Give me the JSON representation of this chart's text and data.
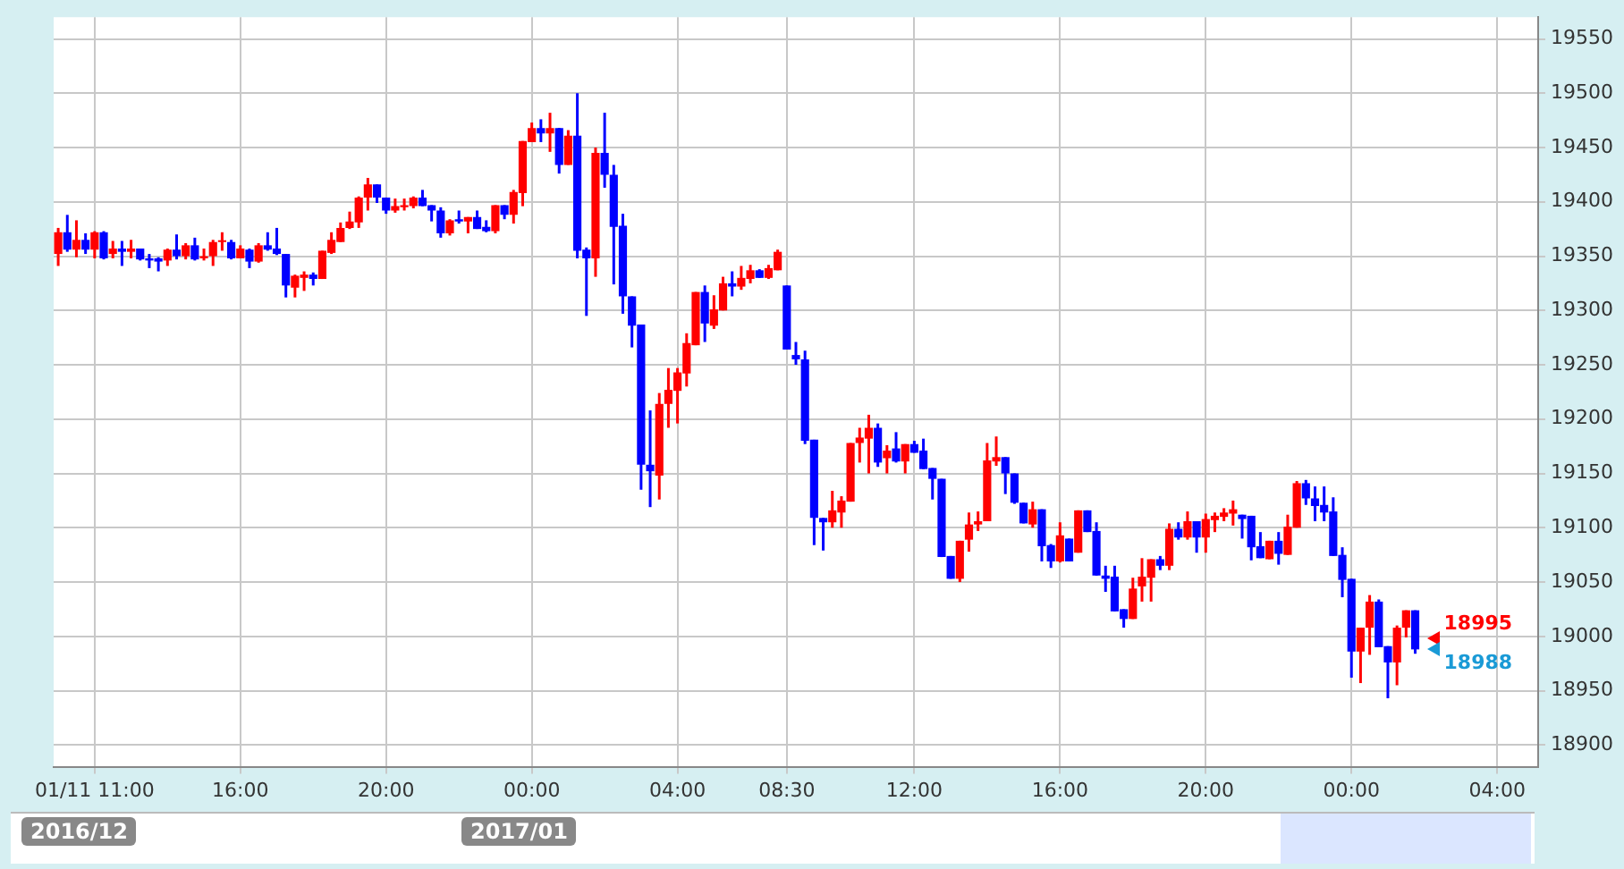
{
  "chart_data": {
    "type": "candlestick",
    "categories": [
      null,
      null,
      null,
      null,
      "01/11 11:00",
      null,
      null,
      null,
      null,
      null,
      null,
      null,
      null,
      null,
      null,
      null,
      null,
      null,
      null,
      null,
      "16:00",
      null,
      null,
      null,
      null,
      null,
      null,
      null,
      null,
      null,
      null,
      null,
      null,
      null,
      null,
      null,
      "20:00",
      null,
      null,
      null,
      null,
      null,
      null,
      null,
      null,
      null,
      null,
      null,
      null,
      null,
      null,
      null,
      "00:00",
      null,
      null,
      null,
      null,
      null,
      null,
      null,
      null,
      null,
      null,
      null,
      null,
      null,
      null,
      null,
      "04:00",
      null,
      null,
      null,
      null,
      null,
      null,
      null,
      null,
      null,
      null,
      null,
      "08:30",
      null,
      null,
      null,
      null,
      null,
      null,
      null,
      null,
      null,
      null,
      null,
      null,
      null,
      "12:00",
      null,
      null,
      null,
      null,
      null,
      null,
      null,
      null,
      null,
      null,
      null,
      null,
      null,
      null,
      null,
      "16:00",
      null,
      null,
      null,
      null,
      null,
      null,
      null,
      null,
      null,
      null,
      null,
      null,
      null,
      null,
      null,
      "20:00",
      null,
      null,
      null,
      null,
      null,
      null,
      null,
      null,
      null,
      null,
      null,
      null,
      null,
      null,
      null,
      "00:00",
      null,
      null,
      null,
      null,
      null,
      null,
      null,
      null,
      null,
      null,
      null,
      null,
      null,
      null,
      null,
      "04:00",
      null,
      null,
      null,
      null
    ],
    "ohlc": [
      [
        19352,
        19376,
        19341,
        19372
      ],
      [
        19372,
        19388,
        19354,
        19356
      ],
      [
        19356,
        19383,
        19349,
        19365
      ],
      [
        19365,
        19371,
        19352,
        19356
      ],
      [
        19356,
        19373,
        19348,
        19372
      ],
      [
        19372,
        19373,
        19347,
        19348
      ],
      [
        19352,
        19364,
        19348,
        19357
      ],
      [
        19357,
        19364,
        19341,
        19354
      ],
      [
        19354,
        19365,
        19348,
        19357
      ],
      [
        19357,
        19357,
        19346,
        19347
      ],
      [
        19348,
        19352,
        19339,
        19346
      ],
      [
        19348,
        19349,
        19336,
        19345
      ],
      [
        19346,
        19357,
        19341,
        19356
      ],
      [
        19356,
        19370,
        19347,
        19350
      ],
      [
        19350,
        19362,
        19347,
        19360
      ],
      [
        19360,
        19367,
        19346,
        19347
      ],
      [
        19348,
        19357,
        19346,
        19350
      ],
      [
        19350,
        19365,
        19341,
        19363
      ],
      [
        19363,
        19372,
        19355,
        19364
      ],
      [
        19363,
        19365,
        19347,
        19348
      ],
      [
        19348,
        19360,
        19348,
        19357
      ],
      [
        19356,
        19357,
        19339,
        19345
      ],
      [
        19345,
        19362,
        19344,
        19360
      ],
      [
        19360,
        19372,
        19355,
        19356
      ],
      [
        19357,
        19376,
        19351,
        19352
      ],
      [
        19352,
        19352,
        19312,
        19323
      ],
      [
        19321,
        19333,
        19312,
        19332
      ],
      [
        19330,
        19336,
        19318,
        19333
      ],
      [
        19333,
        19335,
        19323,
        19329
      ],
      [
        19329,
        19355,
        19329,
        19355
      ],
      [
        19353,
        19372,
        19352,
        19365
      ],
      [
        19363,
        19381,
        19363,
        19376
      ],
      [
        19376,
        19391,
        19375,
        19382
      ],
      [
        19381,
        19405,
        19376,
        19404
      ],
      [
        19404,
        19422,
        19392,
        19416
      ],
      [
        19416,
        19416,
        19399,
        19404
      ],
      [
        19404,
        19404,
        19389,
        19392
      ],
      [
        19392,
        19403,
        19390,
        19396
      ],
      [
        19395,
        19403,
        19392,
        19397
      ],
      [
        19396,
        19405,
        19394,
        19404
      ],
      [
        19404,
        19411,
        19396,
        19396
      ],
      [
        19397,
        19397,
        19382,
        19392
      ],
      [
        19392,
        19395,
        19367,
        19371
      ],
      [
        19371,
        19384,
        19369,
        19383
      ],
      [
        19384,
        19392,
        19380,
        19382
      ],
      [
        19382,
        19386,
        19371,
        19386
      ],
      [
        19386,
        19392,
        19375,
        19375
      ],
      [
        19377,
        19383,
        19372,
        19373
      ],
      [
        19373,
        19397,
        19371,
        19397
      ],
      [
        19397,
        19397,
        19384,
        19388
      ],
      [
        19388,
        19411,
        19380,
        19409
      ],
      [
        19408,
        19456,
        19396,
        19456
      ],
      [
        19455,
        19473,
        19455,
        19468
      ],
      [
        19468,
        19476,
        19455,
        19463
      ],
      [
        19463,
        19482,
        19446,
        19468
      ],
      [
        19468,
        19468,
        19426,
        19434
      ],
      [
        19434,
        19466,
        19434,
        19461
      ],
      [
        19461,
        19500,
        19348,
        19355
      ],
      [
        19356,
        19358,
        19295,
        19348
      ],
      [
        19348,
        19450,
        19331,
        19445
      ],
      [
        19445,
        19482,
        19413,
        19425
      ],
      [
        19425,
        19434,
        19324,
        19377
      ],
      [
        19378,
        19389,
        19297,
        19313
      ],
      [
        19313,
        19313,
        19266,
        19286
      ],
      [
        19287,
        19287,
        19135,
        19158
      ],
      [
        19158,
        19208,
        19119,
        19152
      ],
      [
        19148,
        19224,
        19126,
        19214
      ],
      [
        19214,
        19247,
        19192,
        19227
      ],
      [
        19226,
        19247,
        19196,
        19243
      ],
      [
        19242,
        19279,
        19230,
        19270
      ],
      [
        19268,
        19317,
        19268,
        19317
      ],
      [
        19317,
        19323,
        19271,
        19288
      ],
      [
        19286,
        19314,
        19283,
        19301
      ],
      [
        19300,
        19331,
        19300,
        19325
      ],
      [
        19325,
        19336,
        19313,
        19322
      ],
      [
        19322,
        19341,
        19319,
        19330
      ],
      [
        19329,
        19342,
        19325,
        19337
      ],
      [
        19337,
        19338,
        19330,
        19330
      ],
      [
        19330,
        19342,
        19329,
        19339
      ],
      [
        19337,
        19356,
        19337,
        19354
      ],
      [
        19323,
        19323,
        19264,
        19264
      ],
      [
        19259,
        19271,
        19250,
        19255
      ],
      [
        19255,
        19263,
        19177,
        19180
      ],
      [
        19181,
        19181,
        19084,
        19109
      ],
      [
        19109,
        19109,
        19079,
        19105
      ],
      [
        19105,
        19134,
        19100,
        19116
      ],
      [
        19114,
        19129,
        19100,
        19125
      ],
      [
        19124,
        19178,
        19124,
        19178
      ],
      [
        19178,
        19192,
        19160,
        19183
      ],
      [
        19182,
        19204,
        19150,
        19192
      ],
      [
        19192,
        19196,
        19156,
        19160
      ],
      [
        19164,
        19176,
        19150,
        19171
      ],
      [
        19173,
        19188,
        19160,
        19161
      ],
      [
        19161,
        19177,
        19150,
        19177
      ],
      [
        19177,
        19180,
        19169,
        19169
      ],
      [
        19171,
        19182,
        19154,
        19154
      ],
      [
        19155,
        19155,
        19126,
        19145
      ],
      [
        19145,
        19145,
        19073,
        19073
      ],
      [
        19074,
        19074,
        19053,
        19053
      ],
      [
        19053,
        19088,
        19050,
        19088
      ],
      [
        19089,
        19114,
        19078,
        19103
      ],
      [
        19103,
        19115,
        19097,
        19106
      ],
      [
        19106,
        19178,
        19106,
        19162
      ],
      [
        19161,
        19184,
        19157,
        19165
      ],
      [
        19165,
        19165,
        19131,
        19150
      ],
      [
        19150,
        19150,
        19122,
        19123
      ],
      [
        19123,
        19123,
        19104,
        19104
      ],
      [
        19103,
        19124,
        19100,
        19117
      ],
      [
        19117,
        19117,
        19069,
        19083
      ],
      [
        19084,
        19085,
        19063,
        19069
      ],
      [
        19069,
        19105,
        19068,
        19093
      ],
      [
        19090,
        19090,
        19069,
        19069
      ],
      [
        19077,
        19116,
        19077,
        19116
      ],
      [
        19116,
        19116,
        19096,
        19096
      ],
      [
        19097,
        19105,
        19056,
        19056
      ],
      [
        19056,
        19065,
        19041,
        19053
      ],
      [
        19055,
        19065,
        19023,
        19023
      ],
      [
        19025,
        19025,
        19008,
        19016
      ],
      [
        19016,
        19054,
        19016,
        19044
      ],
      [
        19046,
        19072,
        19032,
        19055
      ],
      [
        19054,
        19071,
        19032,
        19071
      ],
      [
        19071,
        19074,
        19061,
        19065
      ],
      [
        19065,
        19104,
        19061,
        19099
      ],
      [
        19099,
        19105,
        19089,
        19091
      ],
      [
        19091,
        19115,
        19089,
        19106
      ],
      [
        19106,
        19106,
        19077,
        19091
      ],
      [
        19091,
        19113,
        19077,
        19108
      ],
      [
        19107,
        19114,
        19096,
        19111
      ],
      [
        19110,
        19118,
        19106,
        19114
      ],
      [
        19113,
        19125,
        19102,
        19117
      ],
      [
        19112,
        19112,
        19090,
        19108
      ],
      [
        19111,
        19111,
        19070,
        19082
      ],
      [
        19083,
        19096,
        19072,
        19072
      ],
      [
        19071,
        19088,
        19071,
        19088
      ],
      [
        19088,
        19096,
        19066,
        19076
      ],
      [
        19075,
        19112,
        19075,
        19101
      ],
      [
        19100,
        19143,
        19100,
        19141
      ],
      [
        19141,
        19144,
        19121,
        19127
      ],
      [
        19127,
        19138,
        19106,
        19120
      ],
      [
        19121,
        19138,
        19106,
        19114
      ],
      [
        19115,
        19128,
        19074,
        19074
      ],
      [
        19075,
        19082,
        19036,
        19052
      ],
      [
        19053,
        19053,
        18962,
        18986
      ],
      [
        18986,
        19008,
        18957,
        19008
      ],
      [
        19008,
        19038,
        18983,
        19032
      ],
      [
        19032,
        19034,
        18990,
        18990
      ],
      [
        18991,
        18991,
        18943,
        18976
      ],
      [
        18976,
        19010,
        18955,
        19008
      ],
      [
        19008,
        19024,
        18999,
        19024
      ],
      [
        19024,
        19024,
        18984,
        18988
      ],
      null,
      null,
      null,
      null,
      null,
      null,
      null,
      null,
      null,
      null,
      null,
      null,
      null
    ],
    "ylim": [
      18880,
      19570
    ],
    "yticks": [
      18900,
      18950,
      19000,
      19050,
      19100,
      19150,
      19200,
      19250,
      19300,
      19350,
      19400,
      19450,
      19500,
      19550
    ],
    "grid": true,
    "legend": false,
    "annotations": [
      "18995",
      "18988",
      "2016/12",
      "2017/01"
    ]
  }
}
